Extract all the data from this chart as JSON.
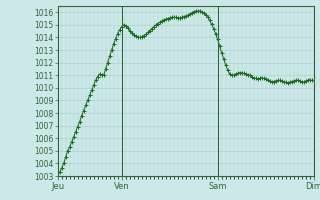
{
  "background_color": "#cce8e8",
  "grid_color": "#aacccc",
  "line_color": "#1a6b1a",
  "marker_color": "#1a6b1a",
  "x_labels": [
    "Jeu",
    "Ven",
    "Sam",
    "Dim"
  ],
  "ylim": [
    1003,
    1016.5
  ],
  "yticks": [
    1003,
    1004,
    1005,
    1006,
    1007,
    1008,
    1009,
    1010,
    1011,
    1012,
    1013,
    1014,
    1015,
    1016
  ],
  "pressure_values": [
    1003.0,
    1003.3,
    1003.6,
    1004.0,
    1004.5,
    1005.0,
    1005.3,
    1005.7,
    1006.1,
    1006.5,
    1006.9,
    1007.3,
    1007.8,
    1008.2,
    1008.6,
    1009.0,
    1009.4,
    1009.8,
    1010.2,
    1010.6,
    1010.9,
    1011.1,
    1011.0,
    1011.0,
    1011.5,
    1012.0,
    1012.5,
    1013.0,
    1013.5,
    1013.9,
    1014.3,
    1014.6,
    1014.85,
    1015.0,
    1014.95,
    1014.75,
    1014.55,
    1014.35,
    1014.2,
    1014.1,
    1014.05,
    1014.0,
    1014.05,
    1014.15,
    1014.25,
    1014.4,
    1014.55,
    1014.7,
    1014.85,
    1015.0,
    1015.1,
    1015.2,
    1015.3,
    1015.4,
    1015.45,
    1015.5,
    1015.55,
    1015.6,
    1015.6,
    1015.6,
    1015.55,
    1015.55,
    1015.6,
    1015.65,
    1015.7,
    1015.75,
    1015.85,
    1015.95,
    1016.05,
    1016.1,
    1016.1,
    1016.1,
    1016.05,
    1015.95,
    1015.8,
    1015.6,
    1015.35,
    1015.05,
    1014.7,
    1014.3,
    1013.85,
    1013.35,
    1012.8,
    1012.3,
    1011.85,
    1011.4,
    1011.1,
    1011.0,
    1011.0,
    1011.1,
    1011.15,
    1011.2,
    1011.2,
    1011.15,
    1011.1,
    1011.05,
    1011.0,
    1010.9,
    1010.8,
    1010.75,
    1010.7,
    1010.75,
    1010.8,
    1010.75,
    1010.7,
    1010.6,
    1010.55,
    1010.5,
    1010.5,
    1010.55,
    1010.6,
    1010.6,
    1010.55,
    1010.5,
    1010.45,
    1010.4,
    1010.45,
    1010.5,
    1010.55,
    1010.6,
    1010.6,
    1010.55,
    1010.5,
    1010.45,
    1010.55,
    1010.6,
    1010.65,
    1010.6
  ],
  "n_points": 128,
  "day_boundaries": [
    0,
    32,
    80,
    128
  ],
  "vline_indices": [
    32,
    80,
    128
  ]
}
